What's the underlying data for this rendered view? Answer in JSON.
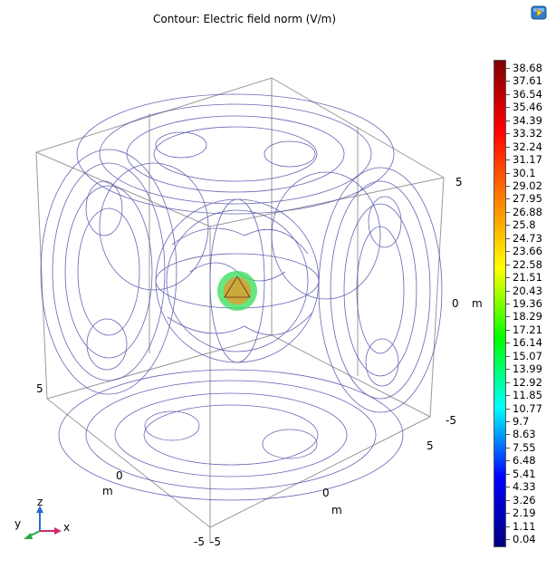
{
  "plot": {
    "title": "Contour: Electric field norm (V/m)"
  },
  "axes": {
    "right": {
      "max": "5",
      "mid": "0",
      "min": "-5",
      "unit": "m"
    },
    "front_left": {
      "max": "5",
      "mid": "0",
      "min": "-5",
      "unit": "m"
    },
    "front_right": {
      "max": "5",
      "mid": "0",
      "min": "-5",
      "unit": "m"
    }
  },
  "colorbar": {
    "labels": [
      "38.68",
      "37.61",
      "36.54",
      "35.46",
      "34.39",
      "33.32",
      "32.24",
      "31.17",
      "30.1",
      "29.02",
      "27.95",
      "26.88",
      "25.8",
      "24.73",
      "23.66",
      "22.58",
      "21.51",
      "20.43",
      "19.36",
      "18.29",
      "17.21",
      "16.14",
      "15.07",
      "13.99",
      "12.92",
      "11.85",
      "10.77",
      "9.7",
      "8.63",
      "7.55",
      "6.48",
      "5.41",
      "4.33",
      "3.26",
      "2.19",
      "1.11",
      "0.04"
    ],
    "colors": [
      "#000080",
      "#0000ff",
      "#00ffff",
      "#00ff00",
      "#ffff00",
      "#ff8000",
      "#ff0000",
      "#800000"
    ]
  },
  "triad": {
    "x": "x",
    "y": "y",
    "z": "z"
  },
  "colors": {
    "contour_line": "#4a4aa8",
    "box_edge": "#9a9a9a",
    "sphere_outer": "#33dd55",
    "sphere_inner": "#d9a030"
  },
  "icons": {
    "viewer_button": "play-window-icon"
  }
}
